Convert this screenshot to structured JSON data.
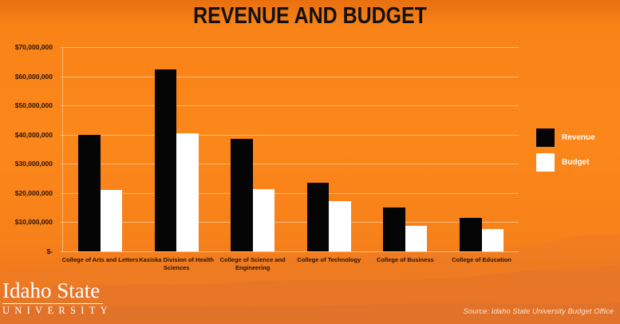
{
  "slide": {
    "title": "REVENUE AND BUDGET",
    "logo": {
      "line1": "Idaho State",
      "line2": "UNIVERSITY"
    },
    "source": "Source: Idaho State University Budget Office"
  },
  "colors": {
    "background": "#fb8619",
    "revenue": "#050505",
    "budget": "#ffffff",
    "gridline": "#fdb978"
  },
  "legend": {
    "items": [
      {
        "label": "Revenue",
        "color": "#050505"
      },
      {
        "label": "Budget",
        "color": "#ffffff"
      }
    ]
  },
  "y_ticks": [
    "$70,000,000",
    "$60,000,000",
    "$50,000,000",
    "$40,000,000",
    "$30,000,000",
    "$20,000,000",
    "$10,000,000",
    "$-"
  ],
  "chart_data": {
    "type": "bar",
    "title": "REVENUE AND BUDGET",
    "xlabel": "",
    "ylabel": "",
    "categories": [
      "College of Arts and Letters",
      "Kasiska Division of Health Sciences",
      "College of Science and Engineering",
      "College of Technology",
      "College of Business",
      "College of Education"
    ],
    "series": [
      {
        "name": "Revenue",
        "color": "#050505",
        "values": [
          40000000,
          62400000,
          38600000,
          23500000,
          15000000,
          11400000
        ]
      },
      {
        "name": "Budget",
        "color": "#ffffff",
        "values": [
          21000000,
          40500000,
          21400000,
          17300000,
          8800000,
          7700000
        ]
      }
    ],
    "ylim": [
      0,
      70000000
    ],
    "y_tick_step": 10000000,
    "y_tick_labels": [
      "$-",
      "$10,000,000",
      "$20,000,000",
      "$30,000,000",
      "$40,000,000",
      "$50,000,000",
      "$60,000,000",
      "$70,000,000"
    ],
    "grid": true,
    "legend_position": "right",
    "source": "Source: Idaho State University Budget Office"
  }
}
